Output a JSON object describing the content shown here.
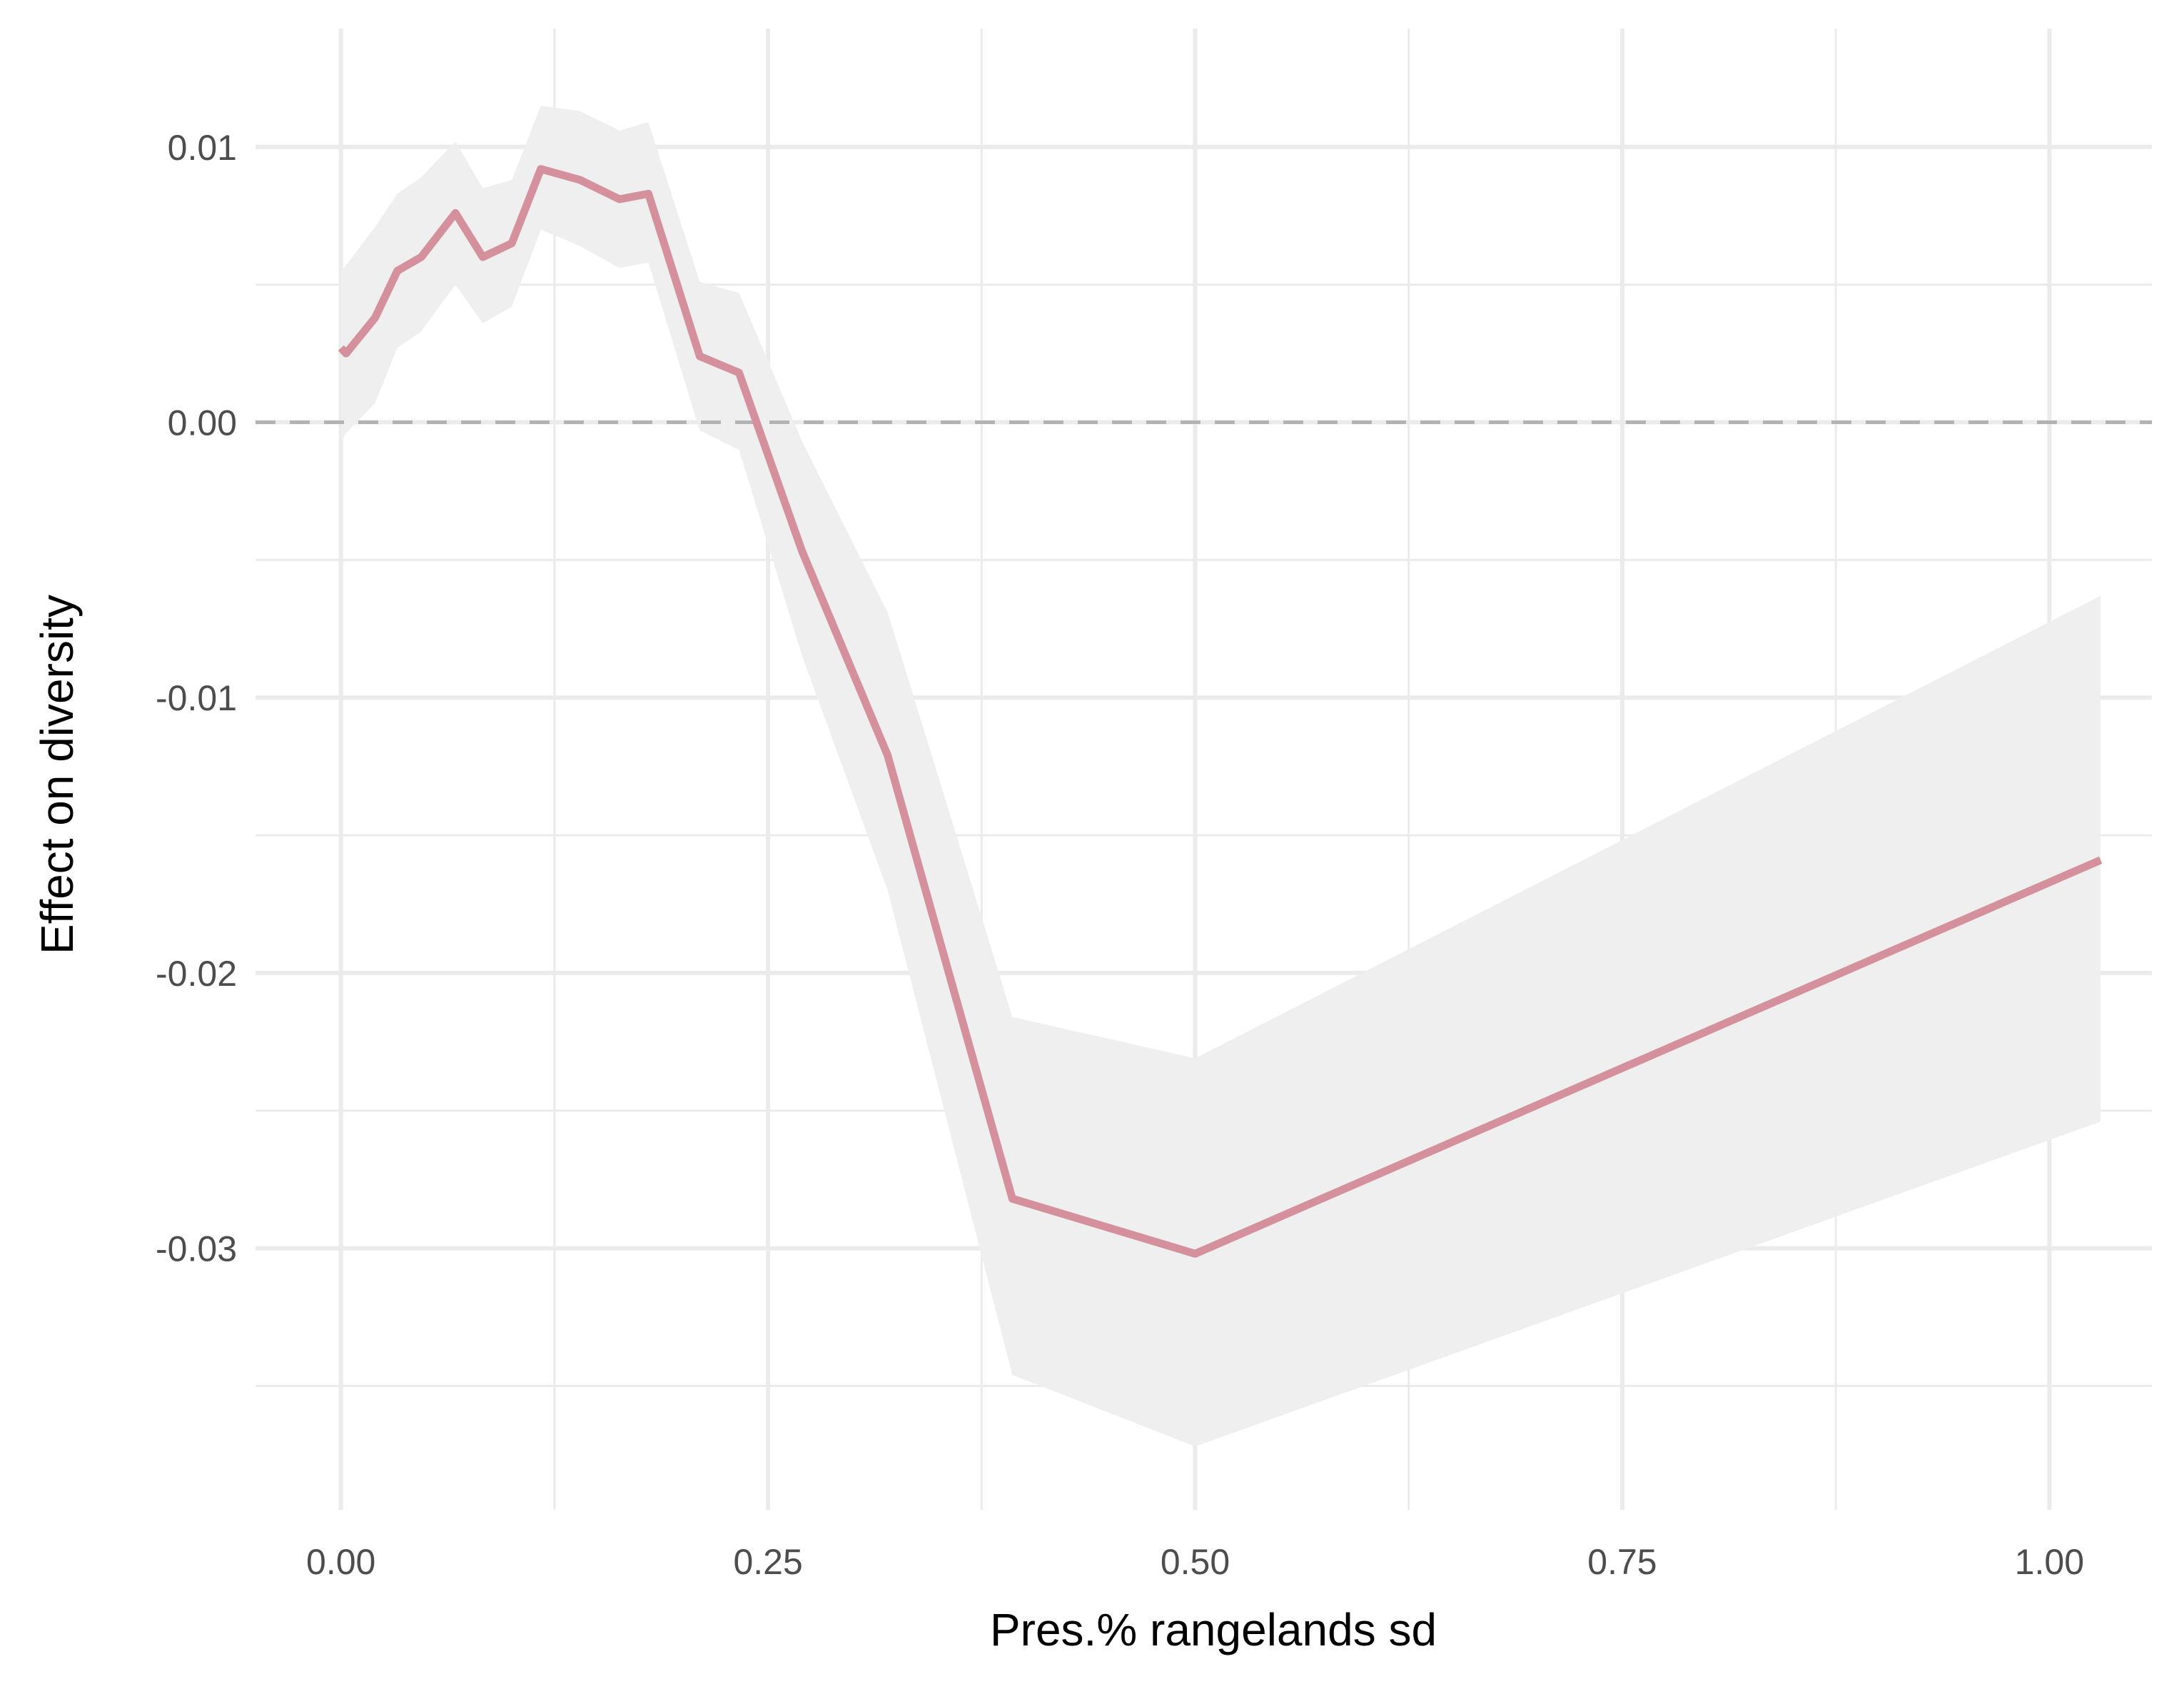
{
  "chart_data": {
    "type": "line",
    "title": "",
    "xlabel": "Pres.% rangelands sd",
    "ylabel": "Effect on diversity",
    "xlim": [
      -0.05,
      1.06
    ],
    "ylim": [
      -0.0395,
      0.0143
    ],
    "x_ticks": [
      0.0,
      0.25,
      0.5,
      0.75,
      1.0
    ],
    "x_tick_labels": [
      "0.00",
      "0.25",
      "0.50",
      "0.75",
      "1.00"
    ],
    "x_minor_ticks": [
      0.125,
      0.375,
      0.625,
      0.875
    ],
    "y_ticks": [
      0.01,
      0.0,
      -0.01,
      -0.02,
      -0.03
    ],
    "y_tick_labels": [
      "0.01",
      "0.00",
      "-0.01",
      "-0.02",
      "-0.03"
    ],
    "y_minor_ticks": [
      0.005,
      -0.005,
      -0.015,
      -0.025,
      -0.035
    ],
    "grid": true,
    "reference_line": {
      "y": 0.0,
      "style": "dashed",
      "color": "#b3b3b3"
    },
    "colors": {
      "line": "#d4919d",
      "ribbon": "#efefef",
      "grid": "#ebebeb"
    },
    "series": [
      {
        "x": [
          0.0,
          0.003,
          0.02,
          0.033,
          0.047,
          0.067,
          0.083,
          0.1,
          0.117,
          0.14,
          0.163,
          0.18,
          0.21,
          0.233,
          0.27,
          0.32,
          0.393,
          0.5,
          1.03
        ],
        "y": [
          0.0027,
          0.0025,
          0.0038,
          0.0055,
          0.006,
          0.0076,
          0.006,
          0.0065,
          0.0092,
          0.0088,
          0.0081,
          0.0083,
          0.0024,
          0.0018,
          -0.0047,
          -0.0121,
          -0.0282,
          -0.0302,
          -0.0159
        ],
        "lower": [
          -0.0007,
          -0.0004,
          0.0007,
          0.0027,
          0.0033,
          0.005,
          0.0036,
          0.0042,
          0.007,
          0.0064,
          0.0056,
          0.0058,
          -0.0003,
          -0.001,
          -0.0085,
          -0.017,
          -0.0346,
          -0.0372,
          -0.0254
        ],
        "upper": [
          0.0055,
          0.0057,
          0.0071,
          0.0083,
          0.0089,
          0.0102,
          0.0085,
          0.0088,
          0.0115,
          0.0113,
          0.0106,
          0.0109,
          0.0051,
          0.0047,
          -0.0007,
          -0.0069,
          -0.0216,
          -0.0231,
          -0.0063
        ]
      }
    ]
  }
}
